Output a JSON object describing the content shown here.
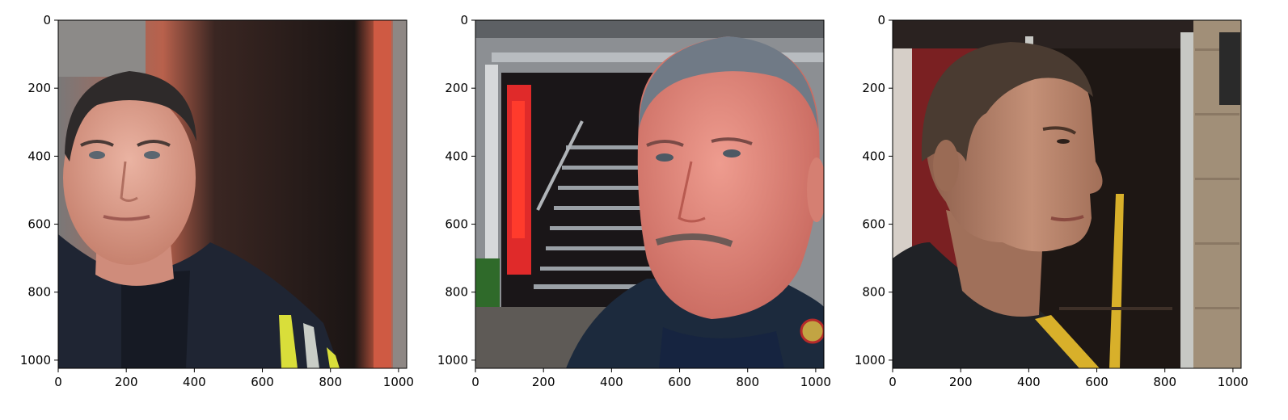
{
  "chart_data": [
    {
      "type": "image",
      "image_subject": "man in dark firefighter jacket with yellow reflective stripe, front view, beside red door frame",
      "x_ticks": [
        "0",
        "200",
        "400",
        "600",
        "800",
        "1000"
      ],
      "y_ticks": [
        "0",
        "200",
        "400",
        "600",
        "800",
        "1000"
      ],
      "xlim": [
        0,
        1024
      ],
      "ylim": [
        1024,
        0
      ],
      "colors": {
        "sky": "#5c4038",
        "wall": "#b8614c",
        "skin": "#e0a08e",
        "hair": "#2e2a2a",
        "jacket": "#1f2533",
        "stripe": "#d9de3a"
      }
    },
    {
      "type": "image",
      "image_subject": "close-up of man with gray hair and mustache in dark jacket, house porch with stairs and red door behind",
      "x_ticks": [
        "0",
        "200",
        "400",
        "600",
        "800",
        "1000"
      ],
      "y_ticks": [
        "0",
        "200",
        "400",
        "600",
        "800",
        "1000"
      ],
      "xlim": [
        0,
        1024
      ],
      "ylim": [
        1024,
        0
      ],
      "colors": {
        "siding": "#8c8f93",
        "doorway": "#1a1618",
        "door": "#e02a2a",
        "skin": "#e79184",
        "hair": "#707a86",
        "jacket": "#1c2a3d",
        "shirt": "#162440"
      }
    },
    {
      "type": "image",
      "image_subject": "side profile of man in dark jacket standing in front of a doorway with stone wall",
      "x_ticks": [
        "0",
        "200",
        "400",
        "600",
        "800",
        "1000"
      ],
      "y_ticks": [
        "0",
        "200",
        "400",
        "600",
        "800",
        "1000"
      ],
      "xlim": [
        0,
        1024
      ],
      "ylim": [
        1024,
        0
      ],
      "colors": {
        "wall": "#7a2022",
        "doorway": "#1e1714",
        "frame": "#c7c8c4",
        "stone": "#a18f78",
        "skin": "#b9836a",
        "hair": "#4a3b31",
        "jacket": "#202226",
        "stripe": "#d8b02a"
      }
    }
  ]
}
